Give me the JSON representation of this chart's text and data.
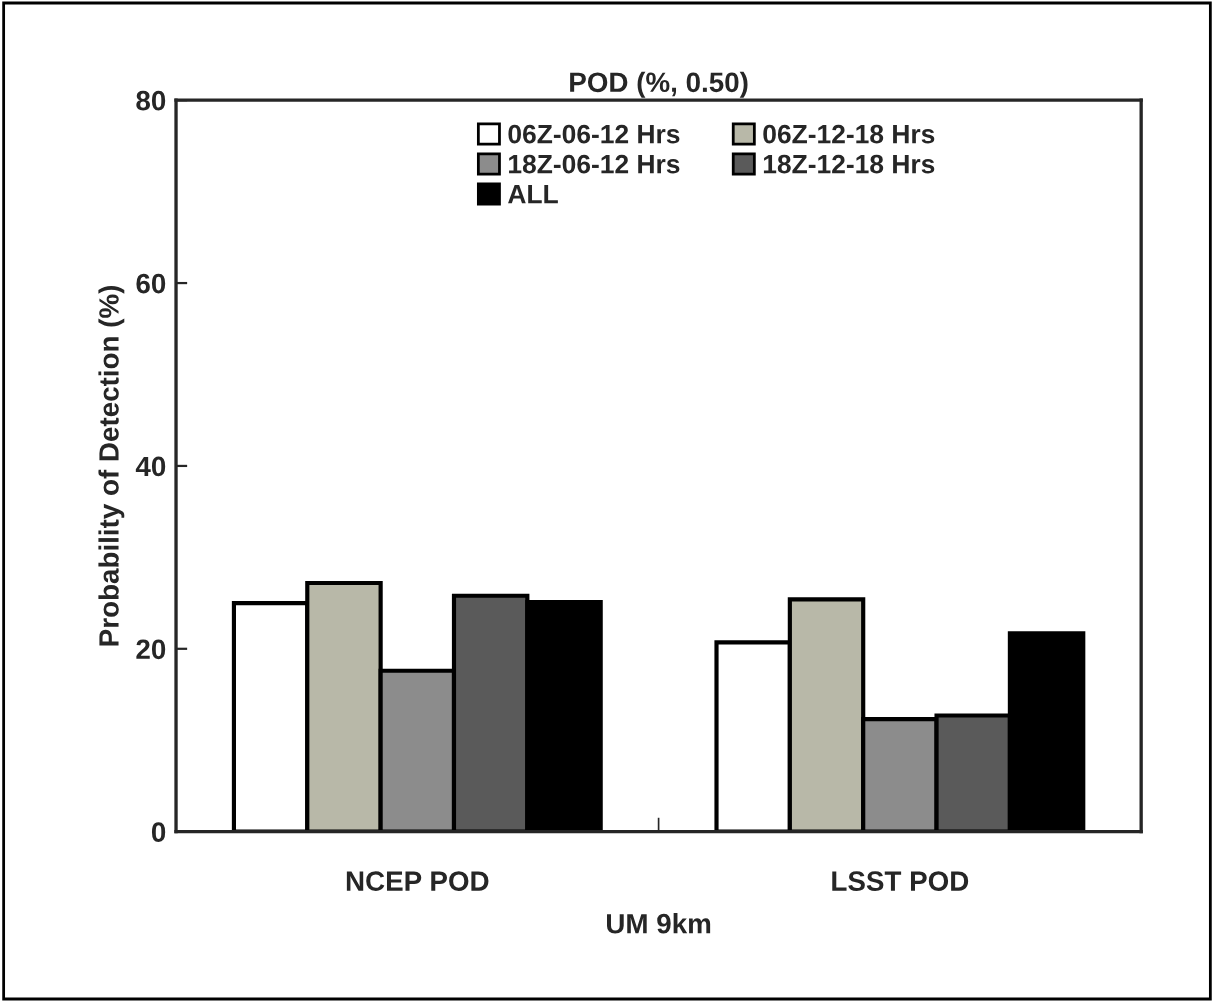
{
  "chart_data": {
    "type": "bar",
    "title": "POD (%, 0.50)",
    "xlabel": "UM 9km",
    "ylabel": "Probability of Detection (%)",
    "categories": [
      "NCEP POD",
      "LSST POD"
    ],
    "series": [
      {
        "name": "06Z-06-12 Hrs",
        "color": "#ffffff",
        "values": [
          25.0,
          20.7
        ]
      },
      {
        "name": "06Z-12-18 Hrs",
        "color": "#b8b8a8",
        "values": [
          27.2,
          25.4
        ]
      },
      {
        "name": "18Z-06-12 Hrs",
        "color": "#8c8c8c",
        "values": [
          17.6,
          12.3
        ]
      },
      {
        "name": "18Z-12-18 Hrs",
        "color": "#5a5a5a",
        "values": [
          25.8,
          12.7
        ]
      },
      {
        "name": "ALL",
        "color": "#000000",
        "values": [
          25.1,
          21.7
        ]
      }
    ],
    "ylim": [
      0,
      80
    ],
    "yticks": [
      0,
      20,
      40,
      60,
      80
    ],
    "grid": false,
    "legend": "top"
  }
}
